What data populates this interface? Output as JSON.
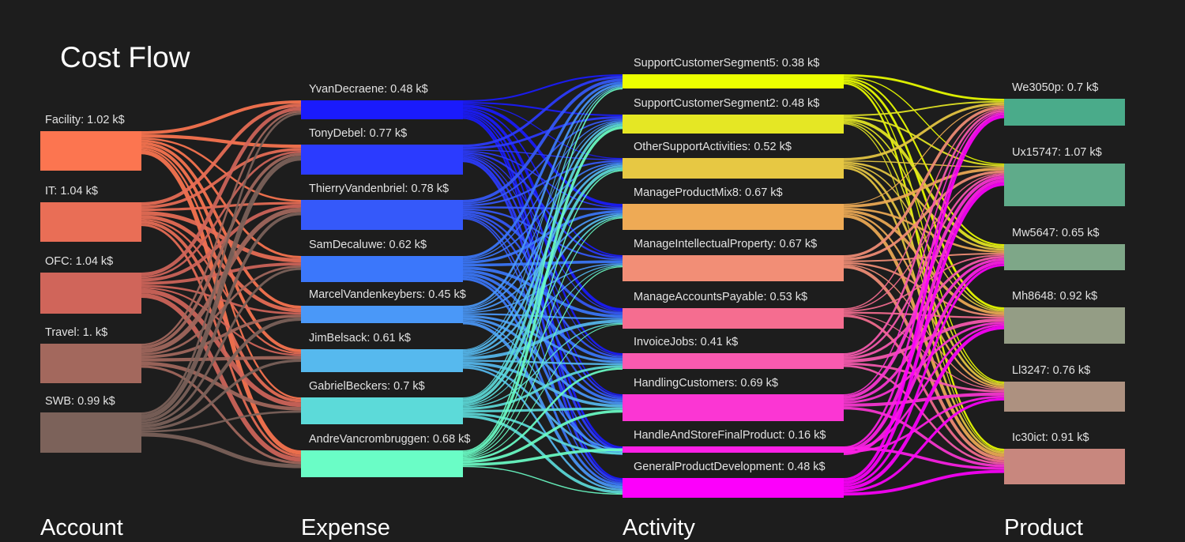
{
  "title": "Cost Flow",
  "unit": "k$",
  "columns": [
    {
      "name": "Account",
      "nodes": [
        {
          "name": "Facility",
          "value": "1.02",
          "color": "#fc7550"
        },
        {
          "name": "IT",
          "value": "1.04",
          "color": "#e96e56"
        },
        {
          "name": "OFC",
          "value": "1.04",
          "color": "#d0655a"
        },
        {
          "name": "Travel",
          "value": "1.",
          "color": "#a3685d"
        },
        {
          "name": "SWB",
          "value": "0.99",
          "color": "#7c625a"
        }
      ]
    },
    {
      "name": "Expense",
      "nodes": [
        {
          "name": "YvanDecraene",
          "value": "0.48",
          "color": "#1a1bfc"
        },
        {
          "name": "TonyDebel",
          "value": "0.77",
          "color": "#2b3bff"
        },
        {
          "name": "ThierryVandenbriel",
          "value": "0.78",
          "color": "#3559fa"
        },
        {
          "name": "SamDecaluwe",
          "value": "0.62",
          "color": "#3b77fb"
        },
        {
          "name": "MarcelVandenkeybers",
          "value": "0.45",
          "color": "#4a98f8"
        },
        {
          "name": "JimBelsack",
          "value": "0.61",
          "color": "#56b9ee"
        },
        {
          "name": "GabrielBeckers",
          "value": "0.7",
          "color": "#5cdad9"
        },
        {
          "name": "AndreVancrombruggen",
          "value": "0.68",
          "color": "#6afdc6"
        }
      ]
    },
    {
      "name": "Activity",
      "nodes": [
        {
          "name": "SupportCustomerSegment5",
          "value": "0.38",
          "color": "#ecff00"
        },
        {
          "name": "SupportCustomerSegment2",
          "value": "0.48",
          "color": "#e5e724"
        },
        {
          "name": "OtherSupportActivities",
          "value": "0.52",
          "color": "#e7c843"
        },
        {
          "name": "ManageProductMix8",
          "value": "0.67",
          "color": "#eeaa55"
        },
        {
          "name": "ManageIntellectualProperty",
          "value": "0.67",
          "color": "#f28e76"
        },
        {
          "name": "ManageAccountsPayable",
          "value": "0.53",
          "color": "#f56d90"
        },
        {
          "name": "InvoiceJobs",
          "value": "0.41",
          "color": "#f95ab0"
        },
        {
          "name": "HandlingCustomers",
          "value": "0.69",
          "color": "#fb36d3"
        },
        {
          "name": "HandleAndStoreFinalProduct",
          "value": "0.16",
          "color": "#fd20e6"
        },
        {
          "name": "GeneralProductDevelopment",
          "value": "0.48",
          "color": "#fc00fb"
        }
      ]
    },
    {
      "name": "Product",
      "nodes": [
        {
          "name": "We3050p",
          "value": "0.7",
          "color": "#4aab8a"
        },
        {
          "name": "Ux15747",
          "value": "1.07",
          "color": "#5fab8a"
        },
        {
          "name": "Mw5647",
          "value": "0.65",
          "color": "#7ea788"
        },
        {
          "name": "Mh8648",
          "value": "0.92",
          "color": "#949d85"
        },
        {
          "name": "Ll3247",
          "value": "0.76",
          "color": "#ad9180"
        },
        {
          "name": "Ic30ict",
          "value": "0.91",
          "color": "#c8877e"
        }
      ]
    }
  ]
}
